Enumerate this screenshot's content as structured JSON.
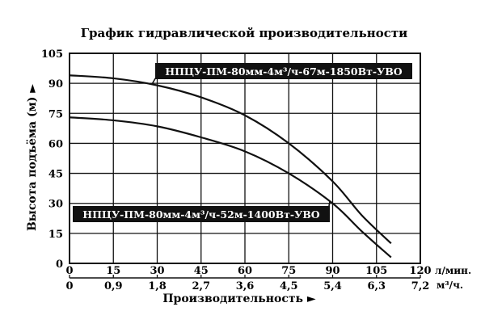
{
  "chart_data": {
    "type": "line",
    "title": "График гидравлической производительности",
    "xlabel": "Производительность ►",
    "ylabel": "Высота подъёма (м) ►",
    "x_unit_primary": "л/мин.",
    "x_unit_secondary": "м³/ч.",
    "xlim": [
      0,
      120
    ],
    "ylim": [
      0,
      105
    ],
    "grid": true,
    "x_ticks": [
      "0",
      "15",
      "30",
      "45",
      "60",
      "75",
      "90",
      "105",
      "120"
    ],
    "x_ticks_secondary": [
      "0",
      "0,9",
      "1,8",
      "2,7",
      "3,6",
      "4,5",
      "5,4",
      "6,3",
      "7,2"
    ],
    "y_ticks": [
      "0",
      "15",
      "30",
      "45",
      "60",
      "75",
      "90",
      "105"
    ],
    "series": [
      {
        "name": "НПЦУ-ПМ-80мм-4м³/ч-67м-1850Вт-УВО",
        "x": [
          0,
          15,
          30,
          45,
          60,
          75,
          90,
          100,
          110
        ],
        "y": [
          94,
          92.5,
          89,
          83,
          74,
          60,
          41,
          24,
          10
        ]
      },
      {
        "name": "НПЦУ-ПМ-80мм-4м³/ч-52м-1400Вт-УВО",
        "x": [
          0,
          15,
          30,
          45,
          60,
          75,
          90,
          100,
          110
        ],
        "y": [
          73,
          71.5,
          68.5,
          63,
          56,
          45,
          30,
          16,
          3
        ]
      }
    ]
  }
}
